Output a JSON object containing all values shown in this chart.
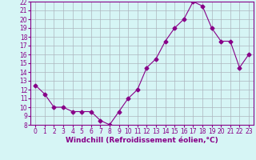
{
  "x": [
    0,
    1,
    2,
    3,
    4,
    5,
    6,
    7,
    8,
    9,
    10,
    11,
    12,
    13,
    14,
    15,
    16,
    17,
    18,
    19,
    20,
    21,
    22,
    23
  ],
  "y": [
    12.5,
    11.5,
    10.0,
    10.0,
    9.5,
    9.5,
    9.5,
    8.5,
    8.0,
    9.5,
    11.0,
    12.0,
    14.5,
    15.5,
    17.5,
    19.0,
    20.0,
    22.0,
    21.5,
    19.0,
    17.5,
    17.5,
    14.5,
    16.0
  ],
  "line_color": "#880088",
  "marker": "D",
  "marker_size": 2.5,
  "bg_color": "#d6f5f5",
  "grid_color": "#adb5bd",
  "xlabel": "Windchill (Refroidissement éolien,°C)",
  "xlabel_color": "#880088",
  "tick_color": "#880088",
  "ylim": [
    8,
    22
  ],
  "xlim": [
    -0.5,
    23.5
  ],
  "yticks": [
    8,
    9,
    10,
    11,
    12,
    13,
    14,
    15,
    16,
    17,
    18,
    19,
    20,
    21,
    22
  ],
  "xticks": [
    0,
    1,
    2,
    3,
    4,
    5,
    6,
    7,
    8,
    9,
    10,
    11,
    12,
    13,
    14,
    15,
    16,
    17,
    18,
    19,
    20,
    21,
    22,
    23
  ],
  "spine_color": "#880088",
  "tick_fontsize": 5.5,
  "xlabel_fontsize": 6.5
}
